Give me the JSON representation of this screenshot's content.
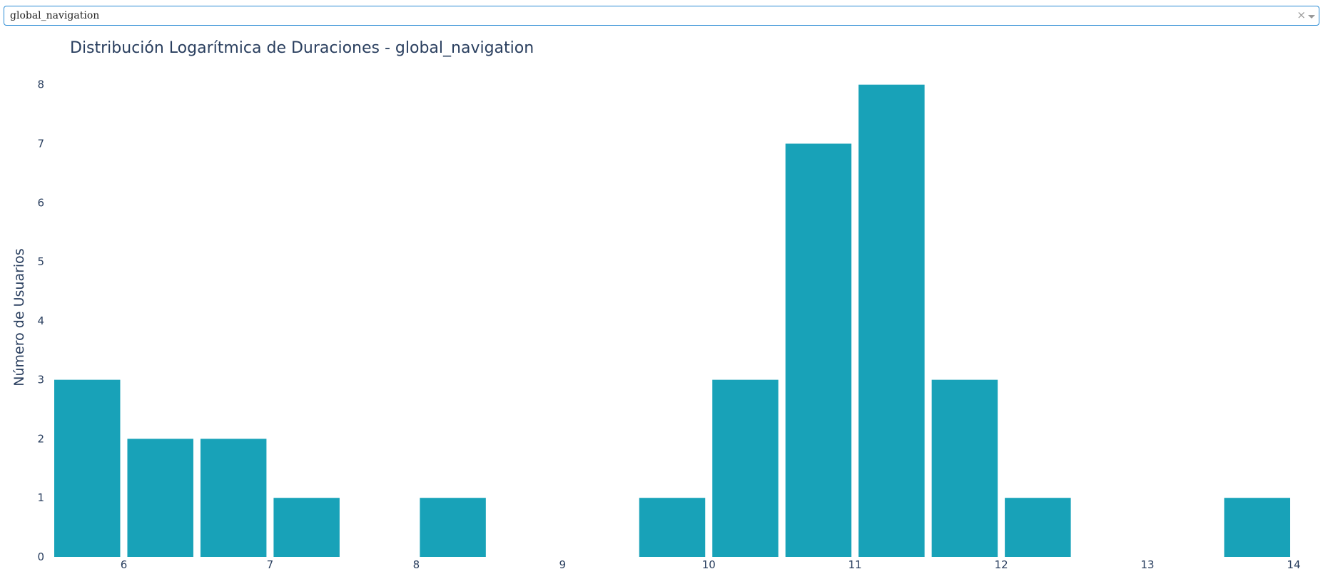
{
  "dropdown": {
    "value": "global_navigation",
    "clear_symbol": "×",
    "caret_icon": "chevron-down-icon"
  },
  "chart_data": {
    "type": "bar",
    "title": "Distribución Logarítmica de Duraciones - global_navigation",
    "xlabel": "",
    "ylabel": "Número de Usuarios",
    "bar_color": "#18a2b8",
    "text_color": "#2a3f5f",
    "xlim": [
      5.5,
      14
    ],
    "ylim": [
      0,
      8.5
    ],
    "x_ticks": [
      6,
      7,
      8,
      9,
      10,
      11,
      12,
      13,
      14
    ],
    "y_ticks": [
      0,
      1,
      2,
      3,
      4,
      5,
      6,
      7,
      8
    ],
    "bin_width": 0.5,
    "bins": [
      {
        "x0": 5.5,
        "x1": 6.0,
        "count": 3
      },
      {
        "x0": 6.0,
        "x1": 6.5,
        "count": 2
      },
      {
        "x0": 6.5,
        "x1": 7.0,
        "count": 2
      },
      {
        "x0": 7.0,
        "x1": 7.5,
        "count": 1
      },
      {
        "x0": 8.0,
        "x1": 8.5,
        "count": 1
      },
      {
        "x0": 9.5,
        "x1": 10.0,
        "count": 1
      },
      {
        "x0": 10.0,
        "x1": 10.5,
        "count": 3
      },
      {
        "x0": 10.5,
        "x1": 11.0,
        "count": 7
      },
      {
        "x0": 11.0,
        "x1": 11.5,
        "count": 8
      },
      {
        "x0": 11.5,
        "x1": 12.0,
        "count": 3
      },
      {
        "x0": 12.0,
        "x1": 12.5,
        "count": 1
      },
      {
        "x0": 13.5,
        "x1": 14.0,
        "count": 1
      }
    ]
  }
}
